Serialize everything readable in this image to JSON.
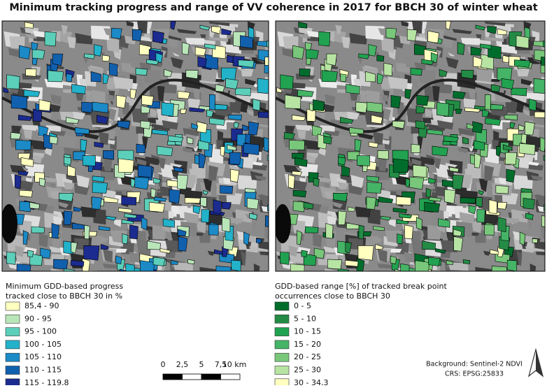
{
  "title": "Minimum tracking progress and range of VV coherence in 2017 for BBCH 30 of winter wheat",
  "maps": [
    {
      "legend_title": [
        "Minimum GDD-based progress",
        "tracked close to BBCH 30 in %"
      ],
      "items": [
        {
          "label": "85,4 - 90",
          "color": "#ffffc0"
        },
        {
          "label": "90 - 95",
          "color": "#b9e6b9"
        },
        {
          "label": "95 - 100",
          "color": "#5ccfba"
        },
        {
          "label": "100 - 105",
          "color": "#22b2c9"
        },
        {
          "label": "105 - 110",
          "color": "#1b8ac6"
        },
        {
          "label": "110 - 115",
          "color": "#1160ad"
        },
        {
          "label": "115 - 119,8",
          "color": "#1b2b8f"
        }
      ]
    },
    {
      "legend_title": [
        "GDD-based range [%] of tracked break point",
        "occurrences close to BBCH 30"
      ],
      "items": [
        {
          "label": "0 - 5",
          "color": "#006d2c"
        },
        {
          "label": "5 - 10",
          "color": "#238b45"
        },
        {
          "label": "10 - 15",
          "color": "#21a250"
        },
        {
          "label": "15 - 20",
          "color": "#45b466"
        },
        {
          "label": "20 - 25",
          "color": "#78c77a"
        },
        {
          "label": "25 - 30",
          "color": "#b7e4a3"
        },
        {
          "label": "30 - 34,3",
          "color": "#ffffc0"
        }
      ]
    }
  ],
  "scale_bar": [
    "0",
    "2,5",
    "5",
    "7,5",
    "10 km"
  ],
  "credits": [
    "Background: Sentinel-2 NDVI",
    "CRS: EPSG:25833"
  ]
}
